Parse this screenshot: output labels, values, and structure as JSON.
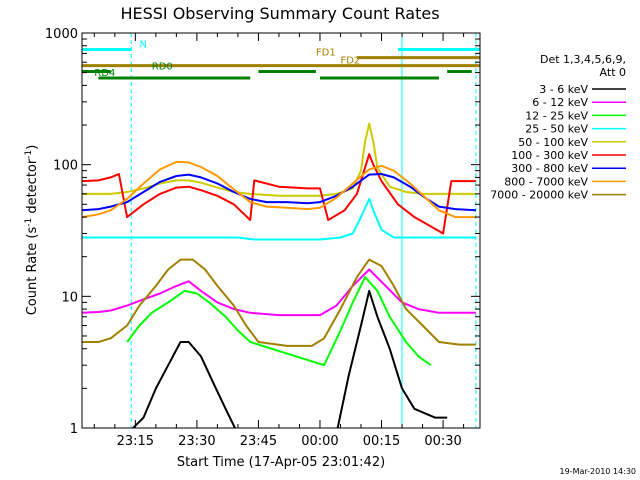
{
  "chart_data": {
    "type": "line",
    "title": "HESSI Observing Summary Count Rates",
    "xlabel": "Start Time (17-Apr-05 23:01:42)",
    "ylabel_main": "Count Rate (s",
    "ylabel_exp1": "-1",
    "ylabel_mid": " detector",
    "ylabel_exp2": "-1",
    "ylabel_end": ")",
    "yscale": "log",
    "ylim": [
      1,
      1000
    ],
    "xlim": [
      "23:02",
      "00:39"
    ],
    "x_ticks": [
      {
        "t": "23:15",
        "label": "23:15"
      },
      {
        "t": "23:30",
        "label": "23:30"
      },
      {
        "t": "23:45",
        "label": "23:45"
      },
      {
        "t": "00:00",
        "label": "00:00"
      },
      {
        "t": "00:15",
        "label": "00:15"
      },
      {
        "t": "00:30",
        "label": "00:30"
      }
    ],
    "y_ticks": [
      {
        "v": 1,
        "label": "1"
      },
      {
        "v": 10,
        "label": "10"
      },
      {
        "v": 100,
        "label": "100"
      },
      {
        "v": 1000,
        "label": "1000"
      }
    ],
    "legend_header": [
      "Det 1,3,4,5,6,9,",
      "Att 0"
    ],
    "series": [
      {
        "name": "3 - 6 keV",
        "color": "#000000",
        "points": [
          [
            "23:13",
            0.9
          ],
          [
            "23:17",
            1.2
          ],
          [
            "23:20",
            2.0
          ],
          [
            "23:23",
            3.0
          ],
          [
            "23:26",
            4.5
          ],
          [
            "23:28",
            4.5
          ],
          [
            "23:31",
            3.5
          ],
          [
            "23:34",
            2.2
          ],
          [
            "23:37",
            1.4
          ],
          [
            "23:40",
            0.9
          ],
          [
            "00:04",
            0.9
          ],
          [
            "00:07",
            2.5
          ],
          [
            "00:10",
            6.0
          ],
          [
            "00:12",
            11.0
          ],
          [
            "00:14",
            7.0
          ],
          [
            "00:17",
            4.0
          ],
          [
            "00:20",
            2.0
          ],
          [
            "00:23",
            1.4
          ],
          [
            "00:28",
            1.2
          ],
          [
            "00:31",
            1.2
          ]
        ]
      },
      {
        "name": "6 - 12 keV",
        "color": "#ff00ff",
        "points": [
          [
            "23:02",
            7.5
          ],
          [
            "23:06",
            7.6
          ],
          [
            "23:09",
            7.8
          ],
          [
            "23:13",
            8.5
          ],
          [
            "23:17",
            9.5
          ],
          [
            "23:21",
            10.5
          ],
          [
            "23:25",
            12.0
          ],
          [
            "23:28",
            13.0
          ],
          [
            "23:31",
            11.0
          ],
          [
            "23:35",
            9.0
          ],
          [
            "23:39",
            8.0
          ],
          [
            "23:43",
            7.5
          ],
          [
            "23:50",
            7.2
          ],
          [
            "00:00",
            7.2
          ],
          [
            "00:04",
            8.5
          ],
          [
            "00:08",
            12.0
          ],
          [
            "00:12",
            16.0
          ],
          [
            "00:16",
            12.0
          ],
          [
            "00:20",
            9.0
          ],
          [
            "00:24",
            8.0
          ],
          [
            "00:29",
            7.5
          ],
          [
            "00:34",
            7.5
          ],
          [
            "00:38",
            7.5
          ]
        ]
      },
      {
        "name": "12 - 25 keV",
        "color": "#00ff00",
        "points": [
          [
            "23:13",
            4.5
          ],
          [
            "23:16",
            6.0
          ],
          [
            "23:19",
            7.5
          ],
          [
            "23:23",
            9.0
          ],
          [
            "23:27",
            11.0
          ],
          [
            "23:30",
            10.5
          ],
          [
            "23:33",
            9.0
          ],
          [
            "23:37",
            7.0
          ],
          [
            "23:40",
            5.5
          ],
          [
            "23:43",
            4.5
          ],
          [
            "00:01",
            3.0
          ],
          [
            "00:05",
            5.5
          ],
          [
            "00:08",
            9.0
          ],
          [
            "00:11",
            14.0
          ],
          [
            "00:14",
            11.0
          ],
          [
            "00:17",
            7.0
          ],
          [
            "00:21",
            4.5
          ],
          [
            "00:24",
            3.5
          ],
          [
            "00:27",
            3.0
          ]
        ]
      },
      {
        "name": "25 - 50 keV",
        "color": "#00ffff",
        "points": [
          [
            "23:02",
            28
          ],
          [
            "23:06",
            28
          ],
          [
            "23:10",
            28
          ],
          [
            "23:13",
            28
          ],
          [
            "23:18",
            28
          ],
          [
            "23:25",
            28
          ],
          [
            "23:32",
            28
          ],
          [
            "23:40",
            28
          ],
          [
            "23:44",
            27
          ],
          [
            "23:48",
            27
          ],
          [
            "23:55",
            27
          ],
          [
            "00:00",
            27
          ],
          [
            "00:05",
            28
          ],
          [
            "00:08",
            30
          ],
          [
            "00:10",
            40
          ],
          [
            "00:12",
            55
          ],
          [
            "00:13",
            45
          ],
          [
            "00:15",
            32
          ],
          [
            "00:18",
            28
          ],
          [
            "00:24",
            28
          ],
          [
            "00:30",
            28
          ],
          [
            "00:35",
            28
          ],
          [
            "00:38",
            28
          ]
        ]
      },
      {
        "name": "50 - 100 keV",
        "color": "#cccc00",
        "points": [
          [
            "23:02",
            60
          ],
          [
            "23:06",
            60
          ],
          [
            "23:09",
            60
          ],
          [
            "23:13",
            62
          ],
          [
            "23:17",
            66
          ],
          [
            "23:21",
            72
          ],
          [
            "23:25",
            76
          ],
          [
            "23:28",
            76
          ],
          [
            "23:31",
            73
          ],
          [
            "23:35",
            67
          ],
          [
            "23:39",
            62
          ],
          [
            "23:43",
            60
          ],
          [
            "23:50",
            58
          ],
          [
            "23:57",
            58
          ],
          [
            "00:00",
            58
          ],
          [
            "00:04",
            60
          ],
          [
            "00:08",
            66
          ],
          [
            "00:10",
            90
          ],
          [
            "00:11",
            150
          ],
          [
            "00:12",
            205
          ],
          [
            "00:13",
            150
          ],
          [
            "00:14",
            95
          ],
          [
            "00:17",
            68
          ],
          [
            "00:21",
            62
          ],
          [
            "00:25",
            60
          ],
          [
            "00:29",
            60
          ],
          [
            "00:34",
            60
          ],
          [
            "00:38",
            60
          ]
        ]
      },
      {
        "name": "100 - 300 keV",
        "color": "#ff0000",
        "points": [
          [
            "23:02",
            75
          ],
          [
            "23:06",
            76
          ],
          [
            "23:09",
            80
          ],
          [
            "23:11",
            85
          ],
          [
            "23:13",
            40
          ],
          [
            "23:17",
            50
          ],
          [
            "23:21",
            60
          ],
          [
            "23:25",
            67
          ],
          [
            "23:28",
            68
          ],
          [
            "23:31",
            64
          ],
          [
            "23:35",
            58
          ],
          [
            "23:39",
            50
          ],
          [
            "23:43",
            38
          ],
          [
            "23:44",
            76
          ],
          [
            "23:50",
            68
          ],
          [
            "23:57",
            66
          ],
          [
            "00:00",
            66
          ],
          [
            "00:02",
            38
          ],
          [
            "00:06",
            45
          ],
          [
            "00:09",
            60
          ],
          [
            "00:11",
            95
          ],
          [
            "00:12",
            120
          ],
          [
            "00:13",
            100
          ],
          [
            "00:15",
            75
          ],
          [
            "00:19",
            50
          ],
          [
            "00:23",
            40
          ],
          [
            "00:27",
            34
          ],
          [
            "00:30",
            30
          ],
          [
            "00:32",
            75
          ],
          [
            "00:35",
            75
          ],
          [
            "00:38",
            75
          ]
        ]
      },
      {
        "name": "300 - 800 keV",
        "color": "#0000ff",
        "points": [
          [
            "23:02",
            45
          ],
          [
            "23:06",
            46
          ],
          [
            "23:09",
            48
          ],
          [
            "23:13",
            52
          ],
          [
            "23:17",
            62
          ],
          [
            "23:21",
            74
          ],
          [
            "23:25",
            82
          ],
          [
            "23:28",
            84
          ],
          [
            "23:31",
            80
          ],
          [
            "23:35",
            72
          ],
          [
            "23:39",
            62
          ],
          [
            "23:43",
            55
          ],
          [
            "23:47",
            52
          ],
          [
            "23:52",
            52
          ],
          [
            "23:57",
            51
          ],
          [
            "00:00",
            52
          ],
          [
            "00:04",
            58
          ],
          [
            "00:08",
            68
          ],
          [
            "00:12",
            84
          ],
          [
            "00:15",
            85
          ],
          [
            "00:18",
            80
          ],
          [
            "00:22",
            68
          ],
          [
            "00:26",
            55
          ],
          [
            "00:29",
            48
          ],
          [
            "00:33",
            46
          ],
          [
            "00:38",
            45
          ]
        ]
      },
      {
        "name": "800 - 7000 keV",
        "color": "#ff9900",
        "points": [
          [
            "23:02",
            40
          ],
          [
            "23:06",
            42
          ],
          [
            "23:09",
            45
          ],
          [
            "23:13",
            55
          ],
          [
            "23:17",
            72
          ],
          [
            "23:21",
            92
          ],
          [
            "23:25",
            105
          ],
          [
            "23:28",
            104
          ],
          [
            "23:31",
            96
          ],
          [
            "23:35",
            82
          ],
          [
            "23:39",
            65
          ],
          [
            "23:43",
            52
          ],
          [
            "23:47",
            48
          ],
          [
            "23:52",
            47
          ],
          [
            "23:57",
            46
          ],
          [
            "00:00",
            47
          ],
          [
            "00:04",
            56
          ],
          [
            "00:08",
            72
          ],
          [
            "00:12",
            92
          ],
          [
            "00:15",
            98
          ],
          [
            "00:18",
            90
          ],
          [
            "00:22",
            72
          ],
          [
            "00:26",
            55
          ],
          [
            "00:29",
            45
          ],
          [
            "00:33",
            40
          ],
          [
            "00:38",
            40
          ]
        ]
      },
      {
        "name": "7000 - 20000 keV",
        "color": "#a08000",
        "points": [
          [
            "23:02",
            4.5
          ],
          [
            "23:06",
            4.5
          ],
          [
            "23:09",
            4.8
          ],
          [
            "23:13",
            6.0
          ],
          [
            "23:16",
            8.5
          ],
          [
            "23:20",
            12.0
          ],
          [
            "23:23",
            16.0
          ],
          [
            "23:26",
            19.0
          ],
          [
            "23:29",
            19.0
          ],
          [
            "23:32",
            16.0
          ],
          [
            "23:35",
            12.0
          ],
          [
            "23:39",
            8.5
          ],
          [
            "23:42",
            6.0
          ],
          [
            "23:45",
            4.5
          ],
          [
            "23:52",
            4.2
          ],
          [
            "23:58",
            4.2
          ],
          [
            "00:01",
            4.8
          ],
          [
            "00:05",
            8.0
          ],
          [
            "00:09",
            14.0
          ],
          [
            "00:12",
            19.0
          ],
          [
            "00:15",
            17.0
          ],
          [
            "00:18",
            12.0
          ],
          [
            "00:21",
            8.0
          ],
          [
            "00:25",
            6.0
          ],
          [
            "00:29",
            4.5
          ],
          [
            "00:34",
            4.3
          ],
          [
            "00:38",
            4.3
          ]
        ]
      }
    ],
    "flags": [
      {
        "name": "N",
        "color": "#00ffff",
        "level": 750,
        "segments": [
          [
            "23:02",
            "23:14"
          ],
          [
            "00:19",
            "00:39"
          ]
        ],
        "label_t": "23:16"
      },
      {
        "name": "FD1",
        "color": "#a08000",
        "level": 650,
        "segments": [
          [
            "00:09",
            "00:39"
          ]
        ],
        "label_t": "23:59"
      },
      {
        "name": "FD2",
        "color": "#a08000",
        "level": 565,
        "segments": [
          [
            "23:02",
            "00:39"
          ]
        ],
        "label_t": "00:05"
      },
      {
        "name": "RD0",
        "color": "#008000",
        "level": 510,
        "segments": [
          [
            "23:02",
            "23:09"
          ],
          [
            "23:45",
            "23:59"
          ],
          [
            "00:31",
            "00:37"
          ]
        ],
        "label_t": "23:19"
      },
      {
        "name": "RD4",
        "color": "#008000",
        "level": 455,
        "segments": [
          [
            "23:06",
            "23:43"
          ],
          [
            "00:00",
            "00:29"
          ]
        ],
        "label_t": "23:05"
      }
    ],
    "saa_solid_lines": [
      "23:02",
      "00:20"
    ],
    "eclipse_dashed_lines": [
      "23:14",
      "00:38"
    ],
    "timestamp": "19-Mar-2010 14:30"
  }
}
